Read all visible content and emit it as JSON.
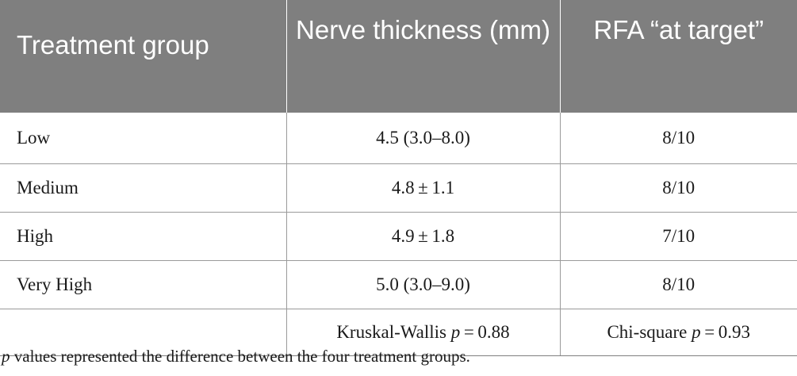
{
  "table": {
    "headers": {
      "group": "Treatment group",
      "thickness": "Nerve thickness (mm)",
      "rfa": "RFA “at target”"
    },
    "rows": [
      {
        "group": "Low",
        "thickness": "4.5 (3.0–8.0)",
        "rfa": "8/10"
      },
      {
        "group": "Medium",
        "thickness": "4.8 ± 1.1",
        "rfa": "8/10"
      },
      {
        "group": "High",
        "thickness": "4.9 ± 1.8",
        "rfa": "7/10"
      },
      {
        "group": "Very High",
        "thickness": "5.0 (3.0–9.0)",
        "rfa": "8/10"
      }
    ],
    "stats": {
      "thickness_test": "Kruskal-Wallis",
      "thickness_p_symbol": "p",
      "thickness_p_value": " = 0.88",
      "rfa_test": "Chi-square",
      "rfa_p_symbol": "p",
      "rfa_p_value": " = 0.93"
    }
  },
  "footnote": {
    "p_symbol": "p",
    "text": " values represented the difference between the four treatment groups."
  }
}
